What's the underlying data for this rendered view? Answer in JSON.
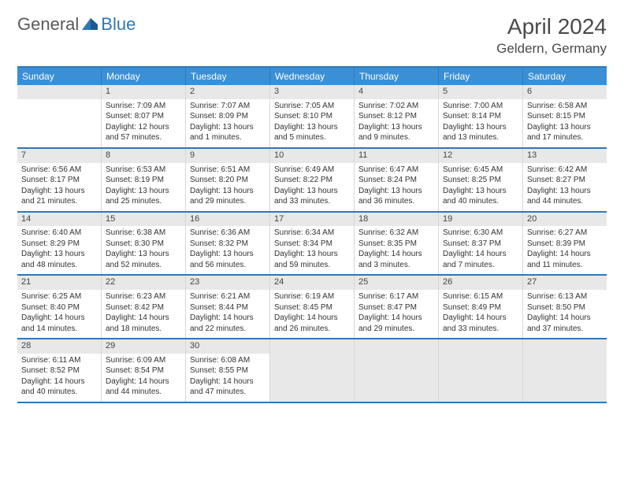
{
  "logo": {
    "general": "General",
    "blue": "Blue"
  },
  "title": "April 2024",
  "location": "Geldern, Germany",
  "dayHeaders": [
    "Sunday",
    "Monday",
    "Tuesday",
    "Wednesday",
    "Thursday",
    "Friday",
    "Saturday"
  ],
  "colors": {
    "accent": "#3b8fd4",
    "accentDark": "#2f77b8",
    "daybar": "#e8e8e8",
    "text": "#333333",
    "title": "#4a4a4a"
  },
  "weeks": [
    [
      {
        "blank": true
      },
      {
        "day": "1",
        "sunrise": "Sunrise: 7:09 AM",
        "sunset": "Sunset: 8:07 PM",
        "daylight1": "Daylight: 12 hours",
        "daylight2": "and 57 minutes."
      },
      {
        "day": "2",
        "sunrise": "Sunrise: 7:07 AM",
        "sunset": "Sunset: 8:09 PM",
        "daylight1": "Daylight: 13 hours",
        "daylight2": "and 1 minutes."
      },
      {
        "day": "3",
        "sunrise": "Sunrise: 7:05 AM",
        "sunset": "Sunset: 8:10 PM",
        "daylight1": "Daylight: 13 hours",
        "daylight2": "and 5 minutes."
      },
      {
        "day": "4",
        "sunrise": "Sunrise: 7:02 AM",
        "sunset": "Sunset: 8:12 PM",
        "daylight1": "Daylight: 13 hours",
        "daylight2": "and 9 minutes."
      },
      {
        "day": "5",
        "sunrise": "Sunrise: 7:00 AM",
        "sunset": "Sunset: 8:14 PM",
        "daylight1": "Daylight: 13 hours",
        "daylight2": "and 13 minutes."
      },
      {
        "day": "6",
        "sunrise": "Sunrise: 6:58 AM",
        "sunset": "Sunset: 8:15 PM",
        "daylight1": "Daylight: 13 hours",
        "daylight2": "and 17 minutes."
      }
    ],
    [
      {
        "day": "7",
        "sunrise": "Sunrise: 6:56 AM",
        "sunset": "Sunset: 8:17 PM",
        "daylight1": "Daylight: 13 hours",
        "daylight2": "and 21 minutes."
      },
      {
        "day": "8",
        "sunrise": "Sunrise: 6:53 AM",
        "sunset": "Sunset: 8:19 PM",
        "daylight1": "Daylight: 13 hours",
        "daylight2": "and 25 minutes."
      },
      {
        "day": "9",
        "sunrise": "Sunrise: 6:51 AM",
        "sunset": "Sunset: 8:20 PM",
        "daylight1": "Daylight: 13 hours",
        "daylight2": "and 29 minutes."
      },
      {
        "day": "10",
        "sunrise": "Sunrise: 6:49 AM",
        "sunset": "Sunset: 8:22 PM",
        "daylight1": "Daylight: 13 hours",
        "daylight2": "and 33 minutes."
      },
      {
        "day": "11",
        "sunrise": "Sunrise: 6:47 AM",
        "sunset": "Sunset: 8:24 PM",
        "daylight1": "Daylight: 13 hours",
        "daylight2": "and 36 minutes."
      },
      {
        "day": "12",
        "sunrise": "Sunrise: 6:45 AM",
        "sunset": "Sunset: 8:25 PM",
        "daylight1": "Daylight: 13 hours",
        "daylight2": "and 40 minutes."
      },
      {
        "day": "13",
        "sunrise": "Sunrise: 6:42 AM",
        "sunset": "Sunset: 8:27 PM",
        "daylight1": "Daylight: 13 hours",
        "daylight2": "and 44 minutes."
      }
    ],
    [
      {
        "day": "14",
        "sunrise": "Sunrise: 6:40 AM",
        "sunset": "Sunset: 8:29 PM",
        "daylight1": "Daylight: 13 hours",
        "daylight2": "and 48 minutes."
      },
      {
        "day": "15",
        "sunrise": "Sunrise: 6:38 AM",
        "sunset": "Sunset: 8:30 PM",
        "daylight1": "Daylight: 13 hours",
        "daylight2": "and 52 minutes."
      },
      {
        "day": "16",
        "sunrise": "Sunrise: 6:36 AM",
        "sunset": "Sunset: 8:32 PM",
        "daylight1": "Daylight: 13 hours",
        "daylight2": "and 56 minutes."
      },
      {
        "day": "17",
        "sunrise": "Sunrise: 6:34 AM",
        "sunset": "Sunset: 8:34 PM",
        "daylight1": "Daylight: 13 hours",
        "daylight2": "and 59 minutes."
      },
      {
        "day": "18",
        "sunrise": "Sunrise: 6:32 AM",
        "sunset": "Sunset: 8:35 PM",
        "daylight1": "Daylight: 14 hours",
        "daylight2": "and 3 minutes."
      },
      {
        "day": "19",
        "sunrise": "Sunrise: 6:30 AM",
        "sunset": "Sunset: 8:37 PM",
        "daylight1": "Daylight: 14 hours",
        "daylight2": "and 7 minutes."
      },
      {
        "day": "20",
        "sunrise": "Sunrise: 6:27 AM",
        "sunset": "Sunset: 8:39 PM",
        "daylight1": "Daylight: 14 hours",
        "daylight2": "and 11 minutes."
      }
    ],
    [
      {
        "day": "21",
        "sunrise": "Sunrise: 6:25 AM",
        "sunset": "Sunset: 8:40 PM",
        "daylight1": "Daylight: 14 hours",
        "daylight2": "and 14 minutes."
      },
      {
        "day": "22",
        "sunrise": "Sunrise: 6:23 AM",
        "sunset": "Sunset: 8:42 PM",
        "daylight1": "Daylight: 14 hours",
        "daylight2": "and 18 minutes."
      },
      {
        "day": "23",
        "sunrise": "Sunrise: 6:21 AM",
        "sunset": "Sunset: 8:44 PM",
        "daylight1": "Daylight: 14 hours",
        "daylight2": "and 22 minutes."
      },
      {
        "day": "24",
        "sunrise": "Sunrise: 6:19 AM",
        "sunset": "Sunset: 8:45 PM",
        "daylight1": "Daylight: 14 hours",
        "daylight2": "and 26 minutes."
      },
      {
        "day": "25",
        "sunrise": "Sunrise: 6:17 AM",
        "sunset": "Sunset: 8:47 PM",
        "daylight1": "Daylight: 14 hours",
        "daylight2": "and 29 minutes."
      },
      {
        "day": "26",
        "sunrise": "Sunrise: 6:15 AM",
        "sunset": "Sunset: 8:49 PM",
        "daylight1": "Daylight: 14 hours",
        "daylight2": "and 33 minutes."
      },
      {
        "day": "27",
        "sunrise": "Sunrise: 6:13 AM",
        "sunset": "Sunset: 8:50 PM",
        "daylight1": "Daylight: 14 hours",
        "daylight2": "and 37 minutes."
      }
    ],
    [
      {
        "day": "28",
        "sunrise": "Sunrise: 6:11 AM",
        "sunset": "Sunset: 8:52 PM",
        "daylight1": "Daylight: 14 hours",
        "daylight2": "and 40 minutes."
      },
      {
        "day": "29",
        "sunrise": "Sunrise: 6:09 AM",
        "sunset": "Sunset: 8:54 PM",
        "daylight1": "Daylight: 14 hours",
        "daylight2": "and 44 minutes."
      },
      {
        "day": "30",
        "sunrise": "Sunrise: 6:08 AM",
        "sunset": "Sunset: 8:55 PM",
        "daylight1": "Daylight: 14 hours",
        "daylight2": "and 47 minutes."
      },
      {
        "trailing": true
      },
      {
        "trailing": true
      },
      {
        "trailing": true
      },
      {
        "trailing": true
      }
    ]
  ]
}
